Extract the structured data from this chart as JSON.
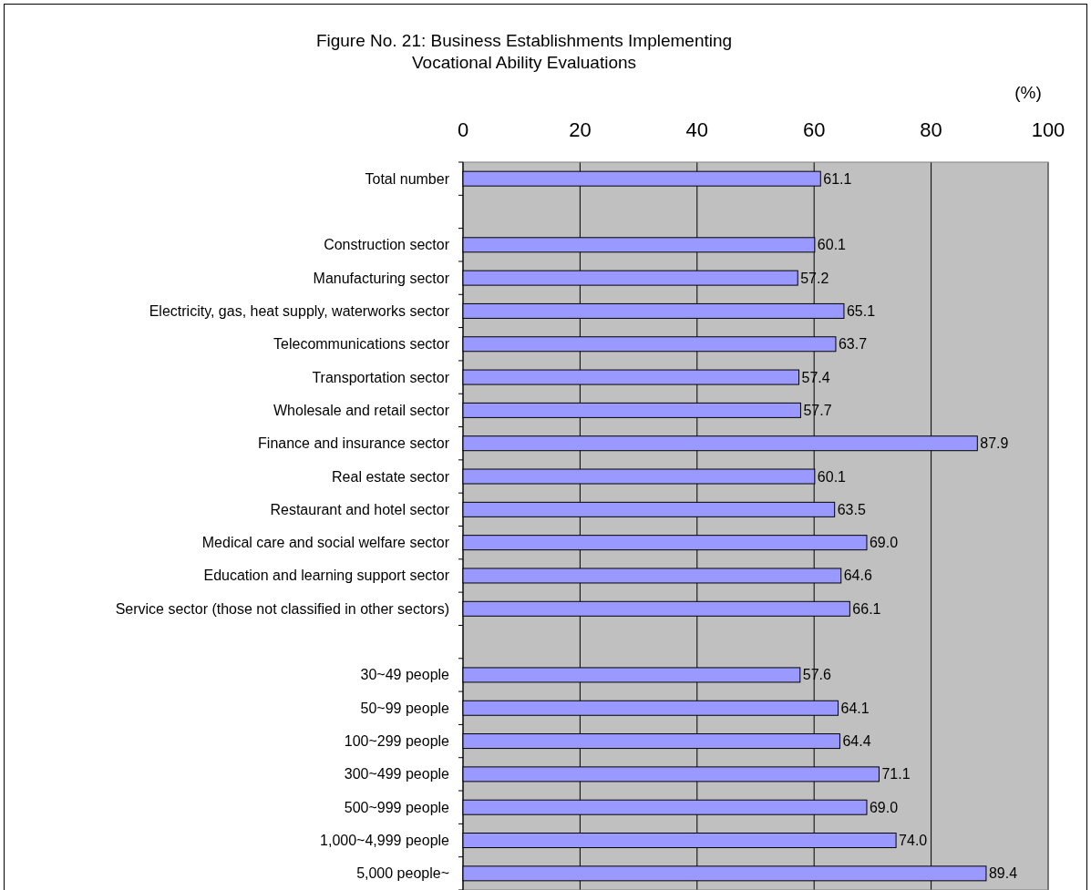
{
  "chart_data": {
    "type": "bar",
    "orientation": "horizontal",
    "title": "Figure No. 21: Business Establishments Implementing\nVocational Ability Evaluations",
    "xlabel": "(%)",
    "categories": [
      "Total number",
      null,
      "Construction sector",
      "Manufacturing sector",
      "Electricity, gas, heat supply, waterworks sector",
      "Telecommunications sector",
      "Transportation sector",
      "Wholesale and retail sector",
      "Finance and insurance sector",
      "Real estate sector",
      "Restaurant and hotel sector",
      "Medical care and social welfare sector",
      "Education and learning support sector",
      "Service sector (those not classified in other sectors)",
      null,
      "30~49 people",
      "50~99 people",
      "100~299 people",
      "300~499 people",
      "500~999 people",
      "1,000~4,999 people",
      "5,000 people~"
    ],
    "values": [
      61.1,
      null,
      60.1,
      57.2,
      65.1,
      63.7,
      57.4,
      57.7,
      87.9,
      60.1,
      63.5,
      69.0,
      64.6,
      66.1,
      null,
      57.6,
      64.1,
      64.4,
      71.1,
      69.0,
      74.0,
      89.4
    ],
    "value_labels": [
      "61.1",
      null,
      "60.1",
      "57.2",
      "65.1",
      "63.7",
      "57.4",
      "57.7",
      "87.9",
      "60.1",
      "63.5",
      "69.0",
      "64.6",
      "66.1",
      null,
      "57.6",
      "64.1",
      "64.4",
      "71.1",
      "69.0",
      "74.0",
      "89.4"
    ],
    "color": "#9999ff",
    "xlim": [
      0,
      100
    ],
    "xticks": [
      0,
      20,
      40,
      60,
      80,
      100
    ],
    "grid": "x"
  }
}
